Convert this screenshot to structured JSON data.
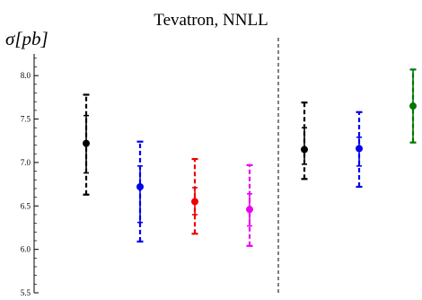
{
  "chart_data": {
    "type": "scatter",
    "title": "Tevatron, NNLL",
    "ylabel": "σ[pb]",
    "xlabel": "",
    "ylim": [
      5.5,
      8.25
    ],
    "yticks": [
      "5.5",
      "6.0",
      "6.5",
      "7.0",
      "7.5",
      "8.0"
    ],
    "grid": false,
    "legend": "none",
    "divider_after_point": 4,
    "points": [
      {
        "x": 1,
        "y": 7.22,
        "inner": [
          6.88,
          7.54
        ],
        "outer": [
          6.63,
          7.78
        ],
        "color": "#000000"
      },
      {
        "x": 2,
        "y": 6.72,
        "inner": [
          6.31,
          6.96
        ],
        "outer": [
          6.09,
          7.24
        ],
        "color": "#0000ee"
      },
      {
        "x": 3,
        "y": 6.55,
        "inner": [
          6.4,
          6.71
        ],
        "outer": [
          6.18,
          7.04
        ],
        "color": "#ee0000"
      },
      {
        "x": 4,
        "y": 6.46,
        "inner": [
          6.27,
          6.64
        ],
        "outer": [
          6.04,
          6.97
        ],
        "color": "#ee00ee"
      },
      {
        "x": 5,
        "y": 7.15,
        "inner": [
          6.98,
          7.4
        ],
        "outer": [
          6.81,
          7.69
        ],
        "color": "#000000"
      },
      {
        "x": 6,
        "y": 7.16,
        "inner": [
          6.96,
          7.29
        ],
        "outer": [
          6.72,
          7.58
        ],
        "color": "#0000ee"
      },
      {
        "x": 7,
        "y": 7.65,
        "inner": [
          7.23,
          8.07
        ],
        "outer": [
          7.23,
          8.07
        ],
        "color": "#007700"
      }
    ]
  }
}
